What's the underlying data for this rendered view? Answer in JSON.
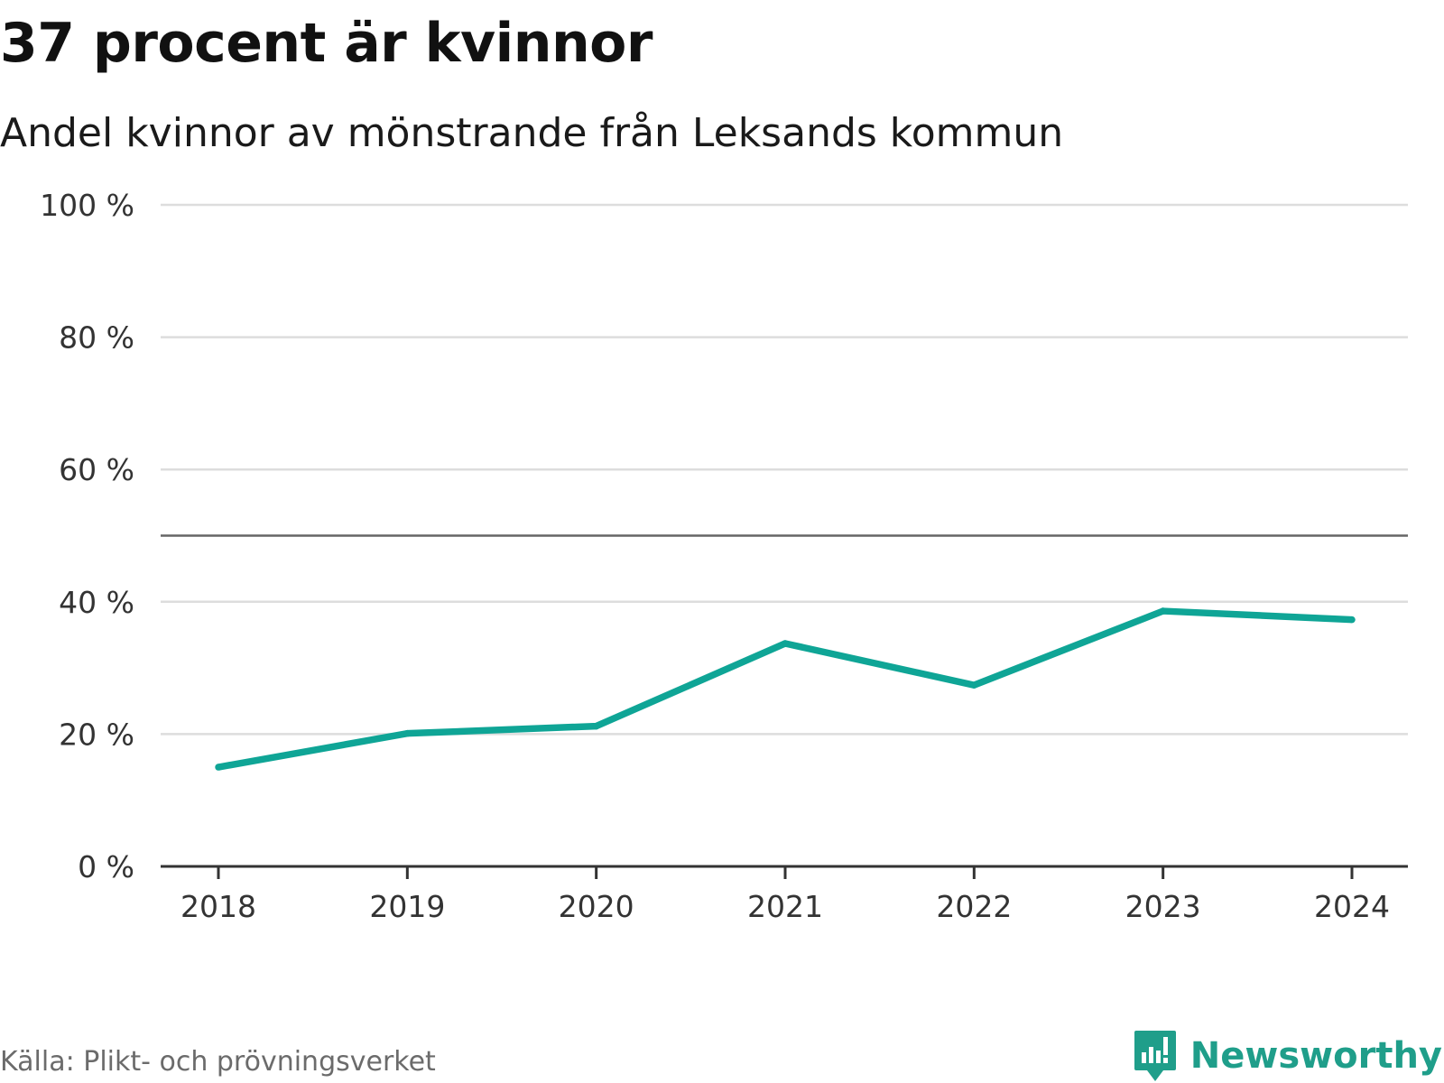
{
  "header": {
    "title": "37 procent är kvinnor",
    "subtitle": "Andel kvinnor av mönstrande från Leksands kommun"
  },
  "footer": {
    "source": "Källa: Plikt- och prövningsverket",
    "brand": "Newsworthy"
  },
  "colors": {
    "series": "#0fa596",
    "brand": "#1f9e8a",
    "grid": "#dddddd",
    "axis": "#333333",
    "reference_line": "#666666"
  },
  "chart_data": {
    "type": "line",
    "title": "37 procent är kvinnor",
    "subtitle": "Andel kvinnor av mönstrande från Leksands kommun",
    "xlabel": "",
    "ylabel": "",
    "categories": [
      "2018",
      "2019",
      "2020",
      "2021",
      "2022",
      "2023",
      "2024"
    ],
    "series": [
      {
        "name": "Andel kvinnor",
        "values": [
          15.0,
          20.1,
          21.2,
          33.7,
          27.4,
          38.6,
          37.3
        ]
      }
    ],
    "ylim": [
      0,
      100
    ],
    "yticks": [
      0,
      20,
      40,
      60,
      80,
      100
    ],
    "ytick_labels": [
      "0 %",
      "20 %",
      "40 %",
      "60 %",
      "80 %",
      "100 %"
    ],
    "reference_line": 50,
    "grid": true,
    "legend": "none"
  }
}
